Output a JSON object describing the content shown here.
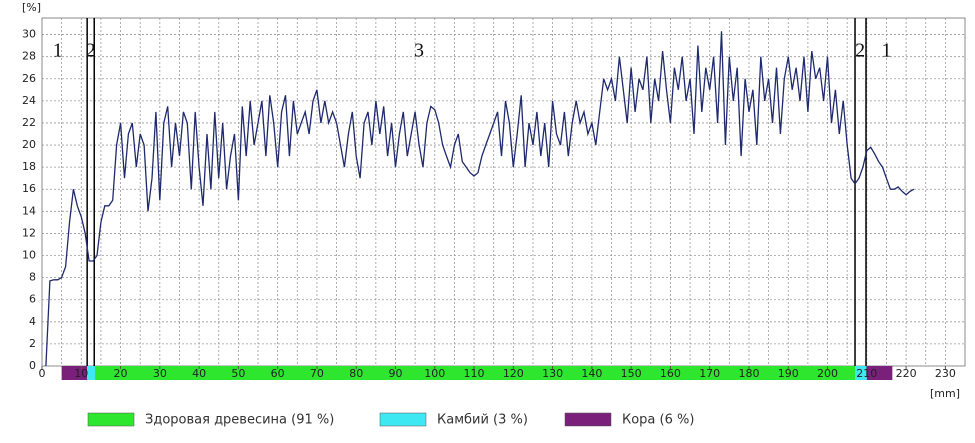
{
  "chart_data": {
    "type": "line",
    "y_unit": "[%]",
    "x_unit": "[mm]",
    "xlim": [
      0,
      235
    ],
    "ylim": [
      0,
      31.5
    ],
    "xticks": [
      0,
      10,
      20,
      30,
      40,
      50,
      60,
      70,
      80,
      90,
      100,
      110,
      120,
      130,
      140,
      150,
      160,
      170,
      180,
      190,
      200,
      210,
      220,
      230
    ],
    "yticks": [
      0,
      2,
      4,
      6,
      8,
      10,
      12,
      14,
      16,
      18,
      20,
      22,
      24,
      26,
      28,
      30
    ],
    "xgrid_step": 5,
    "grid": true,
    "x": [
      1,
      2,
      3,
      4,
      5,
      6,
      7,
      8,
      9,
      10,
      11,
      12,
      13,
      14,
      15,
      16,
      17,
      18,
      19,
      20,
      21,
      22,
      23,
      24,
      25,
      26,
      27,
      28,
      29,
      30,
      31,
      32,
      33,
      34,
      35,
      36,
      37,
      38,
      39,
      40,
      41,
      42,
      43,
      44,
      45,
      46,
      47,
      48,
      49,
      50,
      51,
      52,
      53,
      54,
      55,
      56,
      57,
      58,
      59,
      60,
      61,
      62,
      63,
      64,
      65,
      66,
      67,
      68,
      69,
      70,
      71,
      72,
      73,
      74,
      75,
      76,
      77,
      78,
      79,
      80,
      81,
      82,
      83,
      84,
      85,
      86,
      87,
      88,
      89,
      90,
      91,
      92,
      93,
      94,
      95,
      96,
      97,
      98,
      99,
      100,
      101,
      102,
      103,
      104,
      105,
      106,
      107,
      108,
      109,
      110,
      111,
      112,
      113,
      114,
      115,
      116,
      117,
      118,
      119,
      120,
      121,
      122,
      123,
      124,
      125,
      126,
      127,
      128,
      129,
      130,
      131,
      132,
      133,
      134,
      135,
      136,
      137,
      138,
      139,
      140,
      141,
      142,
      143,
      144,
      145,
      146,
      147,
      148,
      149,
      150,
      151,
      152,
      153,
      154,
      155,
      156,
      157,
      158,
      159,
      160,
      161,
      162,
      163,
      164,
      165,
      166,
      167,
      168,
      169,
      170,
      171,
      172,
      173,
      174,
      175,
      176,
      177,
      178,
      179,
      180,
      181,
      182,
      183,
      184,
      185,
      186,
      187,
      188,
      189,
      190,
      191,
      192,
      193,
      194,
      195,
      196,
      197,
      198,
      199,
      200,
      201,
      202,
      203,
      204,
      205,
      206,
      207,
      208,
      209,
      210,
      211,
      212,
      213,
      214,
      215,
      216,
      217,
      218,
      219,
      220,
      221,
      222
    ],
    "series": [
      {
        "color": "#1f2a6e",
        "values": [
          0,
          7.7,
          7.8,
          7.8,
          8,
          9,
          13,
          16,
          14.5,
          13.5,
          12,
          9.5,
          9.5,
          10,
          13,
          14.5,
          14.5,
          15,
          20,
          22,
          17,
          21,
          22,
          18,
          21,
          20,
          14,
          17,
          23,
          15,
          22,
          23.5,
          18,
          22,
          19,
          23,
          22,
          16,
          23,
          18,
          14.5,
          21,
          16,
          23,
          17,
          22,
          16,
          19,
          21,
          15,
          23.5,
          19,
          24,
          20,
          22,
          24,
          19,
          24.5,
          22,
          18,
          23,
          24.5,
          19,
          24,
          21,
          22,
          23,
          21,
          24,
          25,
          22,
          24,
          22,
          23,
          22,
          20,
          18,
          21,
          23,
          19,
          17,
          22,
          23,
          20,
          24,
          21,
          23.5,
          19,
          22,
          18,
          21,
          23,
          19,
          21,
          23,
          20,
          18,
          22,
          23.5,
          23.2,
          22,
          20,
          19,
          18,
          20,
          21,
          18.5,
          18,
          17.5,
          17.2,
          17.5,
          19,
          20,
          21,
          22,
          23,
          19,
          24,
          22,
          18,
          21,
          24.5,
          18,
          22,
          20,
          23,
          19,
          22,
          18,
          24,
          21,
          20,
          23,
          19,
          22,
          24,
          22,
          23,
          21,
          22,
          20,
          23,
          26,
          25,
          26,
          24,
          28,
          25,
          22,
          27,
          23,
          26,
          25,
          28,
          22,
          26,
          24,
          28.5,
          25,
          22,
          27,
          25,
          28,
          24,
          26,
          21,
          29,
          23,
          27,
          25,
          28,
          22,
          30.3,
          20,
          28,
          24,
          27,
          19,
          26,
          23,
          25,
          20,
          28,
          24,
          26,
          22,
          27,
          21,
          26,
          28,
          25,
          27,
          24,
          28,
          23,
          28.5,
          26,
          27,
          24,
          28,
          22,
          25,
          21,
          24,
          20,
          17,
          16.5,
          17,
          18,
          19.5,
          19.8,
          19.2,
          18.5,
          18,
          17,
          16,
          16,
          16.2,
          15.8,
          15.5,
          15.8,
          16
        ]
      }
    ],
    "zones": [
      {
        "start": 5,
        "end": 11.5,
        "color": "#7a1f7a"
      },
      {
        "start": 11.5,
        "end": 13.5,
        "color": "#3ee8f2"
      },
      {
        "start": 13.5,
        "end": 207,
        "color": "#2ee62e"
      },
      {
        "start": 207,
        "end": 210,
        "color": "#3ee8f2"
      },
      {
        "start": 210,
        "end": 216.5,
        "color": "#7a1f7a"
      }
    ],
    "boundaries": [
      11.5,
      13.3,
      207,
      209.8
    ],
    "regions": [
      {
        "label": "1",
        "x": 4
      },
      {
        "label": "2",
        "x": 12.4
      },
      {
        "label": "3",
        "x": 96
      },
      {
        "label": "2",
        "x": 208.3
      },
      {
        "label": "1",
        "x": 215
      }
    ],
    "legend": [
      {
        "name": "Здоровая древесина (91 %)",
        "color": "#2ee62e"
      },
      {
        "name": "Камбий (3 %)",
        "color": "#3ee8f2"
      },
      {
        "name": "Кора (6 %)",
        "color": "#7a1f7a"
      }
    ]
  }
}
